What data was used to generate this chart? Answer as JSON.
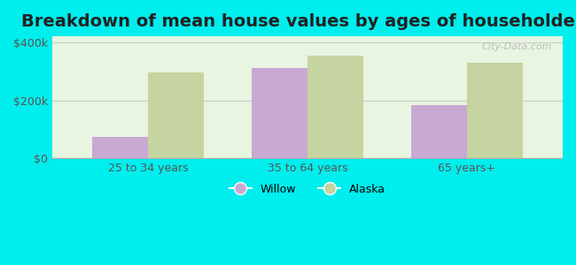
{
  "title": "Breakdown of mean house values by ages of householders",
  "categories": [
    "25 to 34 years",
    "35 to 64 years",
    "65 years+"
  ],
  "willow_values": [
    75000,
    310000,
    185000
  ],
  "alaska_values": [
    295000,
    355000,
    330000
  ],
  "willow_color": "#c9a8d4",
  "alaska_color": "#c5d4a0",
  "background_color": "#00eeee",
  "ylim": [
    0,
    420000
  ],
  "yticks": [
    0,
    200000,
    400000
  ],
  "ytick_labels": [
    "$0",
    "$200k",
    "$400k"
  ],
  "bar_width": 0.35,
  "title_fontsize": 14,
  "legend_labels": [
    "Willow",
    "Alaska"
  ],
  "watermark": "City-Data.com"
}
